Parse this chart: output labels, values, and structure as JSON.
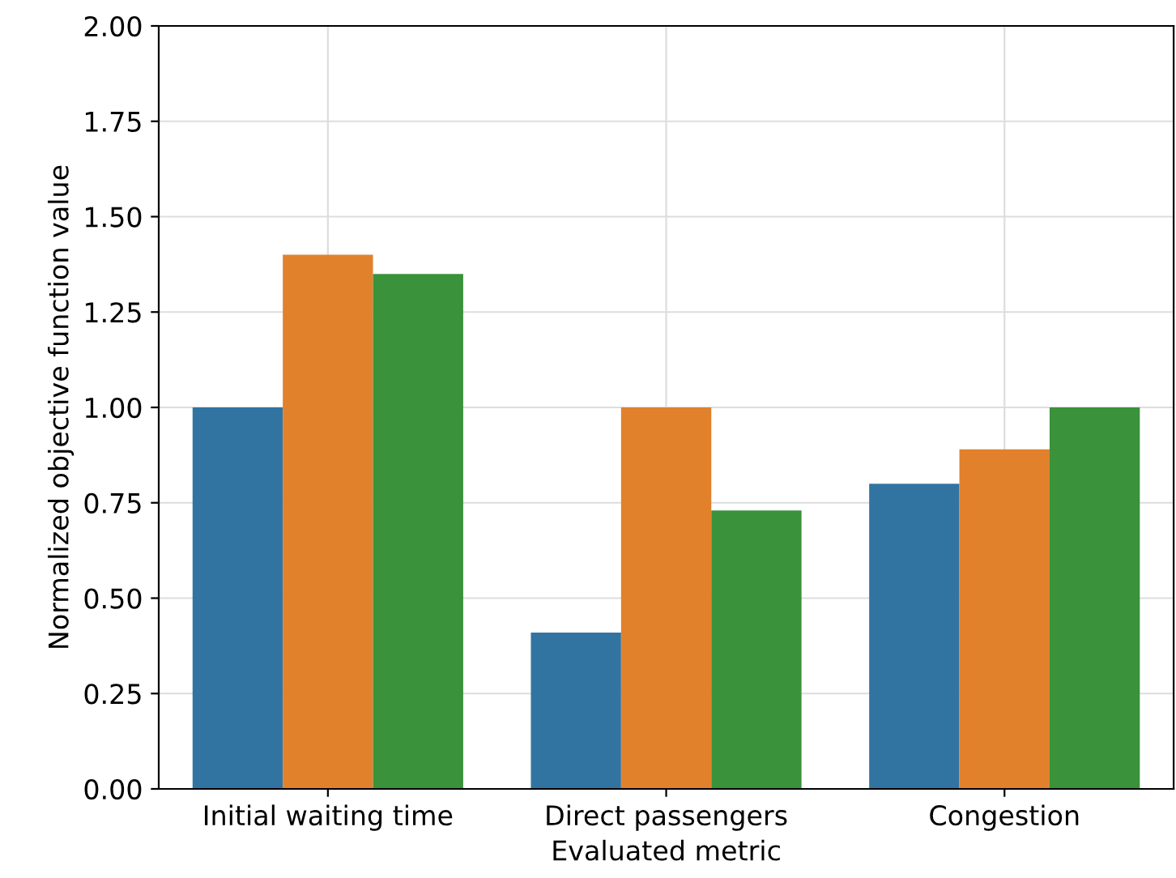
{
  "chart_data": {
    "type": "bar",
    "xlabel": "Evaluated metric",
    "ylabel": "Normalized objective function value",
    "categories": [
      "Initial waiting time",
      "Direct passengers",
      "Congestion"
    ],
    "series": [
      {
        "color": "#3274a1",
        "values": [
          1.0,
          0.41,
          0.8
        ]
      },
      {
        "color": "#e1812c",
        "values": [
          1.4,
          1.0,
          0.89
        ]
      },
      {
        "color": "#3a923a",
        "values": [
          1.35,
          0.73,
          1.0
        ]
      }
    ],
    "ylim": [
      0,
      2.0
    ],
    "yticks": [
      {
        "value": 0,
        "label": "0.00"
      },
      {
        "value": 0.25,
        "label": "0.25"
      },
      {
        "value": 0.5,
        "label": "0.50"
      },
      {
        "value": 0.75,
        "label": "0.75"
      },
      {
        "value": 1.0,
        "label": "1.00"
      },
      {
        "value": 1.25,
        "label": "1.25"
      },
      {
        "value": 1.5,
        "label": "1.50"
      },
      {
        "value": 1.75,
        "label": "1.75"
      },
      {
        "value": 2.0,
        "label": "2.00"
      }
    ],
    "grid": true,
    "legend": false
  }
}
